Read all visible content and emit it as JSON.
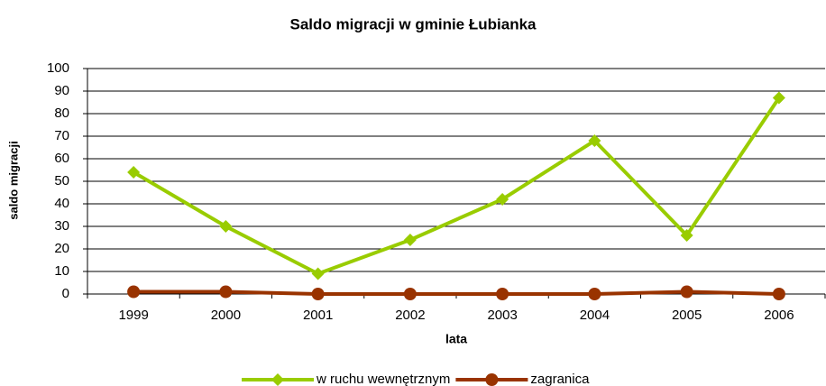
{
  "chart_data": {
    "type": "line",
    "title": "Saldo migracji w gminie Łubianka",
    "x_label": "lata",
    "y_label": "saldo migracji",
    "categories": [
      "1999",
      "2000",
      "2001",
      "2002",
      "2003",
      "2004",
      "2005",
      "2006"
    ],
    "series": [
      {
        "name": "w ruchu wewnętrznym",
        "color": "#99cc00",
        "marker": "diamond",
        "values": [
          54,
          30,
          9,
          24,
          42,
          68,
          26,
          87
        ]
      },
      {
        "name": "zagranica",
        "color": "#993300",
        "marker": "circle",
        "values": [
          1,
          1,
          0,
          0,
          0,
          0,
          1,
          0
        ]
      }
    ],
    "ylim": [
      0,
      100
    ],
    "yticks": [
      0,
      10,
      20,
      30,
      40,
      50,
      60,
      70,
      80,
      90,
      100
    ],
    "grid": true,
    "legend": "bottom"
  }
}
